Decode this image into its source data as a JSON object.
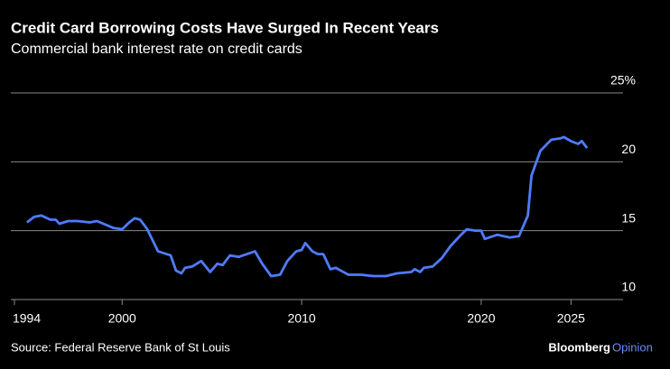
{
  "chart_data": {
    "type": "line",
    "title": "Credit Card Borrowing Costs Have Surged In Recent Years",
    "subtitle": "Commercial bank interest rate on credit cards",
    "source": "Source: Federal Reserve Bank of St Louis",
    "brand": "Bloomberg",
    "brand_suffix": "Opinion",
    "x": [
      1994.7,
      1995.1,
      1995.5,
      1996.0,
      1996.3,
      1996.5,
      1997.0,
      1997.5,
      1998.2,
      1998.6,
      1999.5,
      2000.0,
      2000.4,
      2000.7,
      2001.0,
      2001.4,
      2002.0,
      2002.7,
      2003.0,
      2003.3,
      2003.5,
      2003.9,
      2004.4,
      2004.9,
      2005.3,
      2005.6,
      2006.0,
      2006.5,
      2007.4,
      2007.8,
      2008.3,
      2008.8,
      2009.2,
      2009.7,
      2010.0,
      2010.2,
      2010.6,
      2010.9,
      2011.2,
      2011.6,
      2011.9,
      2012.6,
      2013.3,
      2014.0,
      2014.7,
      2015.3,
      2016.1,
      2016.3,
      2016.6,
      2016.8,
      2017.3,
      2017.8,
      2018.3,
      2018.8,
      2019.2,
      2019.7,
      2020.0,
      2020.2,
      2020.9,
      2021.6,
      2022.1,
      2022.6,
      2022.8,
      2023.3,
      2023.9,
      2024.4,
      2024.6,
      2025.0,
      2025.4,
      2025.6,
      2025.9
    ],
    "series": [
      {
        "name": "Credit card interest rate",
        "color": "#4f7bff",
        "values": [
          15.6,
          16.0,
          16.1,
          15.8,
          15.8,
          15.5,
          15.7,
          15.7,
          15.6,
          15.7,
          15.2,
          15.1,
          15.6,
          15.9,
          15.8,
          15.1,
          13.5,
          13.2,
          12.1,
          11.9,
          12.3,
          12.4,
          12.8,
          12.0,
          12.6,
          12.5,
          13.2,
          13.1,
          13.5,
          12.6,
          11.7,
          11.8,
          12.8,
          13.5,
          13.6,
          14.1,
          13.5,
          13.3,
          13.3,
          12.2,
          12.3,
          11.8,
          11.8,
          11.7,
          11.7,
          11.9,
          12.0,
          12.2,
          12.0,
          12.3,
          12.4,
          13.0,
          13.9,
          14.6,
          15.1,
          15.0,
          15.0,
          14.4,
          14.7,
          14.5,
          14.6,
          16.1,
          19.0,
          20.8,
          21.6,
          21.7,
          21.8,
          21.5,
          21.3,
          21.5,
          21.0
        ]
      }
    ],
    "xlim": [
      1993.8,
      2027.9
    ],
    "xticks": [
      1994,
      2000,
      2010,
      2020,
      2025
    ],
    "ylim": [
      10,
      25
    ],
    "yticks": [
      10,
      15,
      20,
      {
        "value": 25,
        "label": "25%"
      }
    ],
    "grid": true
  }
}
